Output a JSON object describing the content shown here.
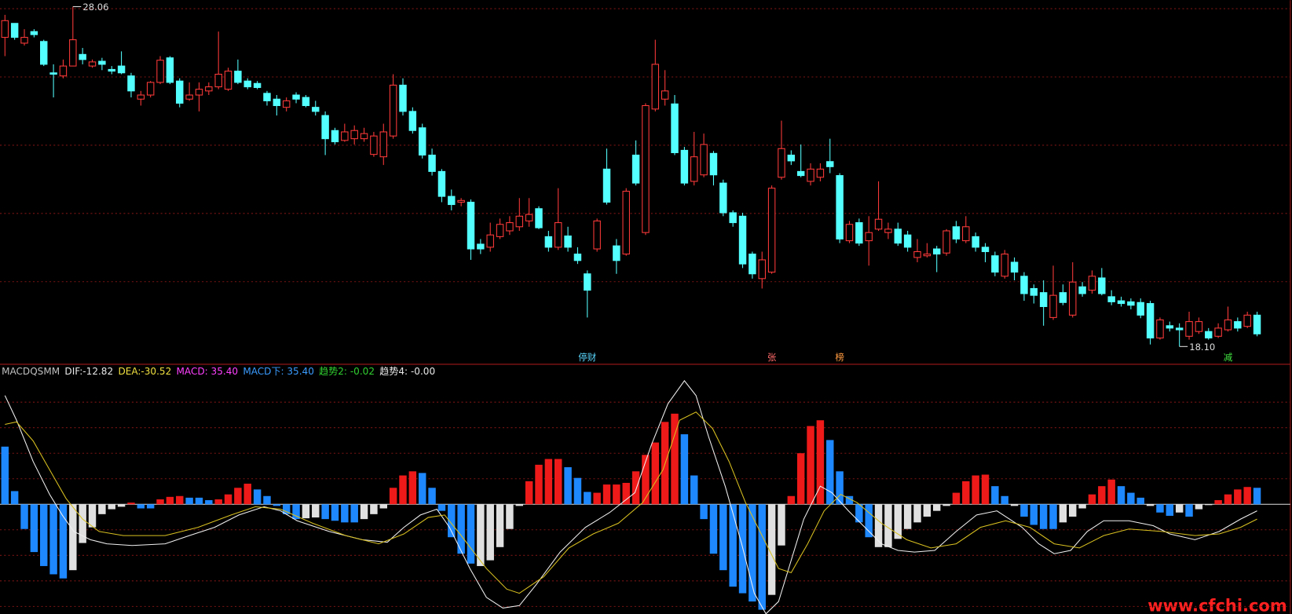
{
  "chart_data": [
    {
      "type": "candlestick",
      "ylim": [
        17.87,
        28.25
      ],
      "grid_lines": [
        20,
        22,
        24,
        26,
        28
      ],
      "up_color": "#ff3a3a",
      "down_color": "#54ffff",
      "open": [
        27.16,
        27.57,
        26.99,
        27.33,
        27.04,
        26.12,
        26.03,
        26.32,
        26.66,
        26.32,
        26.46,
        26.22,
        26.32,
        26.03,
        25.35,
        25.47,
        25.84,
        26.56,
        25.88,
        25.35,
        25.47,
        25.59,
        25.71,
        25.64,
        26.17,
        25.88,
        25.81,
        25.52,
        25.35,
        25.11,
        25.47,
        25.4,
        25.11,
        24.87,
        24.43,
        24.14,
        24.19,
        24.19,
        23.73,
        23.66,
        24.27,
        25.76,
        24.99,
        24.51,
        23.71,
        23.23,
        22.5,
        22.33,
        22.33,
        21.1,
        21.01,
        21.32,
        21.49,
        21.61,
        21.78,
        22.14,
        21.32,
        21.01,
        21.34,
        20.81,
        20.23,
        20.96,
        23.3,
        21.05,
        20.81,
        23.71,
        21.44,
        25.06,
        25.35,
        25.21,
        23.85,
        22.94,
        23.13,
        23.76,
        22.89,
        22.02,
        21.92,
        20.81,
        20.09,
        20.28,
        23.06,
        23.71,
        23.23,
        22.94,
        23.06,
        23.52,
        23.11,
        21.2,
        21.73,
        21.2,
        21.54,
        21.44,
        21.54,
        21.37,
        20.71,
        20.76,
        20.96,
        20.84,
        21.61,
        21.2,
        21.32,
        21.01,
        20.76,
        20.16,
        20.57,
        20.16,
        19.8,
        19.68,
        18.95,
        19.68,
        19.02,
        19.85,
        19.75,
        20.11,
        19.56,
        19.44,
        19.41,
        19.39,
        19.36,
        18.35,
        18.71,
        18.64,
        18.4,
        18.54,
        18.54,
        18.4,
        18.59,
        18.83,
        18.69,
        19.02
      ],
      "high": [
        27.82,
        27.57,
        27.4,
        27.4,
        27.09,
        26.37,
        26.51,
        28.06,
        26.85,
        26.51,
        26.56,
        26.32,
        26.75,
        26.12,
        25.59,
        25.88,
        26.61,
        26.61,
        25.96,
        25.84,
        25.84,
        25.84,
        27.33,
        26.27,
        26.51,
        25.96,
        25.88,
        25.59,
        25.47,
        25.4,
        25.55,
        25.47,
        25.3,
        24.99,
        24.51,
        24.63,
        24.58,
        24.51,
        24.39,
        24.63,
        26.08,
        25.96,
        25.11,
        24.63,
        23.9,
        23.3,
        22.7,
        22.45,
        22.41,
        21.25,
        21.73,
        21.85,
        21.92,
        22.45,
        22.45,
        22.21,
        21.49,
        22.74,
        21.61,
        21.01,
        20.33,
        21.85,
        23.9,
        21.25,
        22.74,
        24.14,
        25.23,
        27.09,
        26.2,
        25.47,
        23.95,
        24.39,
        24.34,
        23.83,
        22.99,
        22.09,
        22.02,
        20.88,
        20.88,
        22.82,
        24.72,
        23.85,
        24.02,
        23.47,
        23.47,
        24.19,
        23.18,
        21.78,
        21.85,
        21.92,
        22.94,
        21.73,
        21.73,
        21.49,
        21.25,
        21.13,
        21.05,
        21.54,
        21.78,
        21.92,
        21.44,
        21.13,
        20.88,
        20.93,
        20.71,
        20.28,
        19.92,
        20.04,
        20.47,
        19.92,
        20.57,
        19.99,
        20.33,
        20.4,
        19.75,
        19.56,
        19.51,
        19.51,
        19.44,
        18.95,
        18.83,
        18.78,
        19.12,
        18.95,
        18.64,
        18.78,
        19.27,
        18.95,
        19.12,
        19.12
      ],
      "low": [
        26.61,
        27.09,
        26.92,
        27.16,
        26.32,
        25.4,
        25.96,
        26.32,
        26.37,
        26.27,
        26.2,
        26.08,
        26.08,
        25.4,
        25.16,
        25.4,
        25.79,
        25.79,
        25.11,
        25.3,
        24.99,
        25.47,
        25.64,
        25.59,
        25.79,
        25.64,
        25.64,
        25.16,
        24.87,
        24.99,
        25.23,
        25.11,
        24.87,
        23.71,
        24.02,
        24.1,
        24.02,
        24.1,
        23.66,
        23.42,
        24.19,
        24.87,
        24.34,
        23.61,
        23.11,
        22.33,
        22.09,
        22.21,
        20.64,
        20.81,
        20.88,
        21.25,
        21.37,
        21.49,
        21.61,
        21.54,
        20.88,
        20.93,
        20.88,
        20.52,
        18.95,
        20.88,
        22.26,
        20.23,
        20.76,
        22.82,
        21.37,
        24.99,
        25.16,
        23.71,
        22.82,
        22.82,
        23.06,
        22.82,
        21.92,
        21.61,
        20.4,
        20.09,
        19.8,
        20.23,
        22.99,
        23.42,
        23.06,
        22.82,
        22.94,
        23.18,
        21.13,
        21.13,
        21.05,
        20.47,
        21.49,
        21.25,
        21.05,
        20.88,
        20.57,
        20.71,
        20.28,
        20.76,
        21.13,
        21.13,
        20.88,
        20.57,
        20.16,
        20.09,
        20.04,
        19.44,
        19.36,
        18.71,
        18.88,
        19.31,
        18.95,
        19.56,
        19.65,
        19.6,
        19.31,
        19.27,
        19.19,
        18.93,
        18.16,
        18.3,
        18.54,
        18.1,
        18.3,
        18.47,
        18.3,
        18.35,
        18.54,
        18.54,
        18.64,
        18.4
      ],
      "close": [
        27.65,
        27.16,
        27.16,
        27.24,
        26.37,
        26.08,
        26.32,
        27.09,
        26.51,
        26.44,
        26.37,
        26.17,
        26.12,
        25.59,
        25.47,
        25.84,
        26.49,
        25.84,
        25.23,
        25.47,
        25.64,
        25.71,
        26.08,
        26.17,
        25.84,
        25.71,
        25.69,
        25.3,
        25.16,
        25.3,
        25.35,
        25.16,
        24.99,
        24.19,
        24.1,
        24.39,
        24.43,
        24.34,
        24.27,
        24.39,
        25.76,
        24.99,
        24.43,
        23.71,
        23.23,
        22.5,
        22.26,
        22.38,
        20.96,
        20.96,
        21.37,
        21.68,
        21.73,
        21.92,
        21.97,
        21.58,
        21.01,
        21.73,
        21.01,
        20.62,
        19.75,
        21.78,
        22.33,
        20.62,
        22.65,
        22.89,
        25.16,
        26.37,
        25.59,
        23.78,
        22.89,
        23.66,
        24.02,
        23.13,
        22.02,
        21.73,
        20.52,
        20.23,
        20.64,
        22.74,
        23.9,
        23.54,
        23.11,
        23.3,
        23.3,
        23.37,
        21.25,
        21.68,
        21.13,
        21.44,
        21.83,
        21.54,
        21.13,
        21.01,
        20.88,
        20.81,
        20.81,
        21.49,
        21.25,
        21.61,
        21.01,
        20.88,
        20.28,
        20.81,
        20.28,
        19.65,
        19.6,
        19.27,
        19.6,
        19.39,
        19.99,
        19.65,
        20.16,
        19.65,
        19.41,
        19.36,
        19.31,
        19.02,
        18.35,
        18.88,
        18.64,
        18.59,
        18.83,
        18.83,
        18.35,
        18.64,
        18.88,
        18.64,
        19.02,
        18.47
      ],
      "annotations": [
        {
          "text": "28.06",
          "value": 28.06,
          "index": 7
        },
        {
          "text": "18.10",
          "value": 18.1,
          "index": 121
        }
      ],
      "tags": [
        {
          "text": "停财",
          "index": 60,
          "color": "#5ad8ff"
        },
        {
          "text": "张",
          "index": 79,
          "color": "#ff6a6a"
        },
        {
          "text": "榜",
          "index": 86,
          "color": "#ff9a40"
        },
        {
          "text": "减",
          "index": 126,
          "color": "#40e040"
        }
      ]
    },
    {
      "type": "macd",
      "ylim": [
        -135,
        160
      ],
      "grid_lines": [
        -124,
        -93,
        -62,
        -31,
        31,
        62,
        93,
        124
      ],
      "header": [
        {
          "text": "MACDQSMM",
          "color": "#c0c0c0"
        },
        {
          "text": "DIF:-12.82",
          "color": "#e8e8e8"
        },
        {
          "text": "DEA:-30.52",
          "color": "#f0e040"
        },
        {
          "text": "MACD: 35.40",
          "color": "#ff40ff"
        },
        {
          "text": "MACD下: 35.40",
          "color": "#3a9cff"
        },
        {
          "text": "趋势2: -0.02",
          "color": "#30d030"
        },
        {
          "text": "趋势4: -0.00",
          "color": "#e8e8e8"
        }
      ],
      "histogram": {
        "colors": {
          "r": "#ee1a1a",
          "b": "#1e88ff",
          "w": "#e0e0e0"
        },
        "values": [
          70,
          16,
          -30,
          -58,
          -75,
          -85,
          -90,
          -80,
          -47,
          -28,
          -12,
          -6,
          -3,
          2,
          -5,
          -5,
          6,
          9,
          10,
          8,
          8,
          5,
          6,
          12,
          20,
          25,
          18,
          10,
          -2,
          -12,
          -18,
          -17,
          -16,
          -18,
          -20,
          -22,
          -22,
          -18,
          -12,
          -5,
          20,
          35,
          40,
          38,
          20,
          -8,
          -40,
          -60,
          -72,
          -75,
          -68,
          -52,
          -30,
          -2,
          28,
          48,
          55,
          55,
          45,
          32,
          15,
          14,
          24,
          24,
          26,
          40,
          60,
          75,
          100,
          110,
          85,
          35,
          -18,
          -60,
          -80,
          -100,
          -108,
          -118,
          -128,
          -110,
          -50,
          10,
          62,
          95,
          102,
          78,
          40,
          10,
          -22,
          -40,
          -52,
          -52,
          -42,
          -30,
          -22,
          -15,
          -8,
          -2,
          14,
          28,
          35,
          36,
          22,
          10,
          -2,
          -15,
          -25,
          -30,
          -30,
          -22,
          -15,
          -5,
          12,
          22,
          30,
          22,
          14,
          8,
          -2,
          -10,
          -14,
          -10,
          -15,
          -6,
          -1,
          5,
          12,
          18,
          21,
          20
        ],
        "states": [
          "b",
          "b",
          "b",
          "b",
          "b",
          "b",
          "b",
          "w",
          "w",
          "w",
          "w",
          "w",
          "w",
          "r",
          "b",
          "b",
          "r",
          "r",
          "r",
          "b",
          "b",
          "b",
          "r",
          "r",
          "r",
          "r",
          "b",
          "b",
          "b",
          "b",
          "b",
          "w",
          "w",
          "b",
          "b",
          "b",
          "b",
          "w",
          "w",
          "w",
          "r",
          "r",
          "r",
          "b",
          "b",
          "b",
          "b",
          "b",
          "b",
          "w",
          "w",
          "w",
          "w",
          "w",
          "r",
          "r",
          "r",
          "r",
          "b",
          "b",
          "b",
          "r",
          "r",
          "r",
          "r",
          "r",
          "r",
          "r",
          "r",
          "r",
          "b",
          "b",
          "b",
          "b",
          "b",
          "b",
          "b",
          "b",
          "b",
          "w",
          "w",
          "r",
          "r",
          "r",
          "r",
          "b",
          "b",
          "b",
          "b",
          "b",
          "w",
          "w",
          "w",
          "w",
          "w",
          "w",
          "w",
          "w",
          "r",
          "r",
          "r",
          "r",
          "b",
          "b",
          "w",
          "b",
          "b",
          "b",
          "b",
          "w",
          "w",
          "w",
          "r",
          "r",
          "r",
          "b",
          "b",
          "b",
          "w",
          "b",
          "b",
          "w",
          "b",
          "w",
          "w",
          "r",
          "r",
          "r",
          "r",
          "b"
        ]
      },
      "lines": [
        {
          "color": "#f0f0f0",
          "x": [
            0,
            1.2,
            2.9,
            4.6,
            5.9,
            7.1,
            8.8,
            10.5,
            13.1,
            16.5,
            19.0,
            21.6,
            24.1,
            26.7,
            28.4,
            30.1,
            33.4,
            36.8,
            39.4,
            41.1,
            42.8,
            44.5,
            45.8,
            47.9,
            49.6,
            51.3,
            53.0,
            54.7,
            57.2,
            59.8,
            62.3,
            64.9,
            66.6,
            68.3,
            70.0,
            71.2,
            72.5,
            74.2,
            75.9,
            77.2,
            78.4,
            79.7,
            81.0,
            82.3,
            84.0,
            85.2,
            86.9,
            88.6,
            90.3,
            92.0,
            93.7,
            95.8,
            98.0,
            100.1,
            102.2,
            104.8,
            106.5,
            108.1,
            109.8,
            111.5,
            113.2,
            115.8,
            118.3,
            120.0,
            122.6,
            125.1,
            127.3,
            129.0
          ],
          "values": [
            132,
            102,
            52,
            12,
            -13,
            -33,
            -43,
            -48,
            -50,
            -48,
            -38,
            -28,
            -13,
            -3,
            -8,
            -20,
            -33,
            -43,
            -46,
            -28,
            -13,
            -6,
            -28,
            -78,
            -113,
            -126,
            -123,
            -98,
            -58,
            -28,
            -10,
            14,
            72,
            122,
            150,
            132,
            82,
            22,
            -48,
            -108,
            -133,
            -118,
            -68,
            -18,
            22,
            14,
            -8,
            -28,
            -48,
            -56,
            -58,
            -56,
            -33,
            -13,
            -8,
            -28,
            -48,
            -60,
            -56,
            -33,
            -20,
            -20,
            -26,
            -36,
            -43,
            -33,
            -18,
            -8
          ]
        },
        {
          "color": "#d8c020",
          "x": [
            0,
            1.2,
            2.9,
            4.6,
            6.3,
            8.0,
            9.7,
            12.2,
            16.5,
            19.9,
            23.3,
            25.8,
            28.4,
            31.7,
            35.1,
            38.5,
            41.1,
            43.6,
            45.3,
            47.0,
            49.6,
            51.7,
            53.0,
            55.5,
            58.1,
            60.6,
            63.2,
            65.7,
            67.8,
            69.5,
            71.2,
            72.9,
            74.6,
            76.3,
            78.0,
            79.7,
            81.0,
            82.7,
            84.4,
            86.1,
            87.8,
            90.3,
            92.9,
            95.4,
            98.0,
            100.5,
            103.1,
            105.6,
            108.1,
            110.7,
            113.2,
            115.8,
            119.2,
            122.6,
            125.1,
            127.3,
            129.0
          ],
          "values": [
            97,
            100,
            77,
            42,
            7,
            -18,
            -33,
            -38,
            -38,
            -28,
            -13,
            -3,
            -6,
            -23,
            -38,
            -48,
            -36,
            -16,
            -13,
            -38,
            -78,
            -103,
            -108,
            -88,
            -53,
            -36,
            -23,
            2,
            42,
            102,
            112,
            92,
            52,
            2,
            -38,
            -78,
            -83,
            -48,
            -8,
            12,
            2,
            -23,
            -43,
            -53,
            -48,
            -28,
            -20,
            -28,
            -48,
            -53,
            -38,
            -30,
            -33,
            -38,
            -36,
            -28,
            -18
          ]
        }
      ]
    }
  ],
  "watermark": "www.cfchi.com"
}
